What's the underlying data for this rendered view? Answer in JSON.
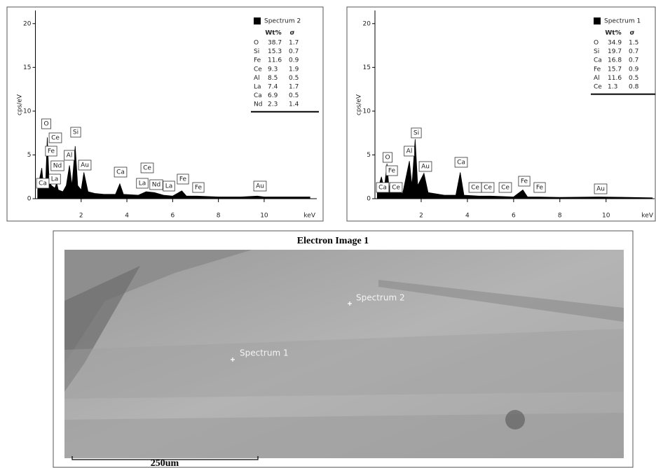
{
  "chart_data": [
    {
      "type": "area",
      "x_label": "keV",
      "y_label": "cps/eV",
      "xlim": [
        0,
        12.3
      ],
      "ylim": [
        0,
        21.5
      ],
      "xticks": [
        2,
        4,
        6,
        8,
        10
      ],
      "yticks": [
        0,
        5,
        10,
        15,
        20
      ],
      "x": [
        0.1,
        0.2,
        0.28,
        0.35,
        0.45,
        0.52,
        0.6,
        0.7,
        0.85,
        0.93,
        1.0,
        1.2,
        1.35,
        1.49,
        1.6,
        1.74,
        1.85,
        2.0,
        2.12,
        2.3,
        2.6,
        3.0,
        3.5,
        3.69,
        3.85,
        4.5,
        4.84,
        5.2,
        5.6,
        6.0,
        6.4,
        6.6,
        7.06,
        8,
        9,
        9.7,
        10,
        11,
        12
      ],
      "series": [
        {
          "name": "Spectrum 2",
          "color": "#000000",
          "values": [
            1,
            2.5,
            3.5,
            1.5,
            2,
            7,
            2,
            1.5,
            1.2,
            1.8,
            1,
            0.8,
            1.5,
            3.8,
            1.5,
            6,
            1.5,
            1,
            3,
            0.8,
            0.6,
            0.5,
            0.5,
            1.7,
            0.5,
            0.4,
            0.8,
            0.7,
            0.4,
            0.3,
            0.9,
            0.3,
            0.3,
            0.2,
            0.2,
            0.3,
            0.2,
            0.2,
            0.2
          ]
        }
      ],
      "table": {
        "columns": [
          "Wt%",
          "σ"
        ],
        "rows": [
          [
            "O",
            "38.7",
            "1.7"
          ],
          [
            "Si",
            "15.3",
            "0.7"
          ],
          [
            "Fe",
            "11.6",
            "0.9"
          ],
          [
            "Ce",
            "9.3",
            "1.9"
          ],
          [
            "Al",
            "8.5",
            "0.5"
          ],
          [
            "La",
            "7.4",
            "1.7"
          ],
          [
            "Ca",
            "6.9",
            "0.5"
          ],
          [
            "Nd",
            "2.3",
            "1.4"
          ]
        ]
      },
      "annotations": [
        "O",
        "Ce",
        "Fe",
        "Nd",
        "Al",
        "Si",
        "Au",
        "La",
        "Ca",
        "Ca",
        "La",
        "Ce",
        "Nd",
        "La",
        "Fe",
        "Fe",
        "Au"
      ]
    },
    {
      "type": "area",
      "x_label": "keV",
      "y_label": "cps/eV",
      "xlim": [
        0,
        12.1
      ],
      "ylim": [
        0,
        21.5
      ],
      "xticks": [
        2,
        4,
        6,
        8,
        10
      ],
      "yticks": [
        0,
        5,
        10,
        15,
        20
      ],
      "x": [
        0.1,
        0.28,
        0.4,
        0.52,
        0.6,
        0.7,
        0.88,
        1.0,
        1.2,
        1.49,
        1.6,
        1.74,
        1.85,
        2.12,
        2.3,
        3.0,
        3.5,
        3.69,
        3.85,
        4.5,
        5.0,
        6.0,
        6.4,
        6.6,
        7.06,
        8,
        9.7,
        11,
        12
      ],
      "series": [
        {
          "name": "Spectrum 1",
          "color": "#000000",
          "values": [
            0.8,
            2.5,
            1,
            4,
            1.5,
            1.3,
            1,
            0.8,
            0.6,
            4.3,
            1.5,
            6.8,
            1.5,
            2.9,
            0.7,
            0.4,
            0.4,
            3,
            0.4,
            0.3,
            0.3,
            0.2,
            1,
            0.2,
            0.2,
            0.15,
            0.2,
            0.15,
            0.1
          ]
        }
      ],
      "table": {
        "columns": [
          "Wt%",
          "σ"
        ],
        "rows": [
          [
            "O",
            "34.9",
            "1.5"
          ],
          [
            "Si",
            "19.7",
            "0.7"
          ],
          [
            "Ca",
            "16.8",
            "0.7"
          ],
          [
            "Fe",
            "15.7",
            "0.9"
          ],
          [
            "Al",
            "11.6",
            "0.5"
          ],
          [
            "Ce",
            "1.3",
            "0.8"
          ]
        ]
      },
      "annotations": [
        "O",
        "Fe",
        "Ca",
        "Ce",
        "Al",
        "Si",
        "Au",
        "Ca",
        "Ce",
        "Ce",
        "Ce",
        "Fe",
        "Fe",
        "Au"
      ]
    }
  ],
  "electron_image": {
    "title": "Electron Image 1",
    "markers": [
      "Spectrum 2",
      "Spectrum 1"
    ],
    "scale_bar": "250um"
  }
}
